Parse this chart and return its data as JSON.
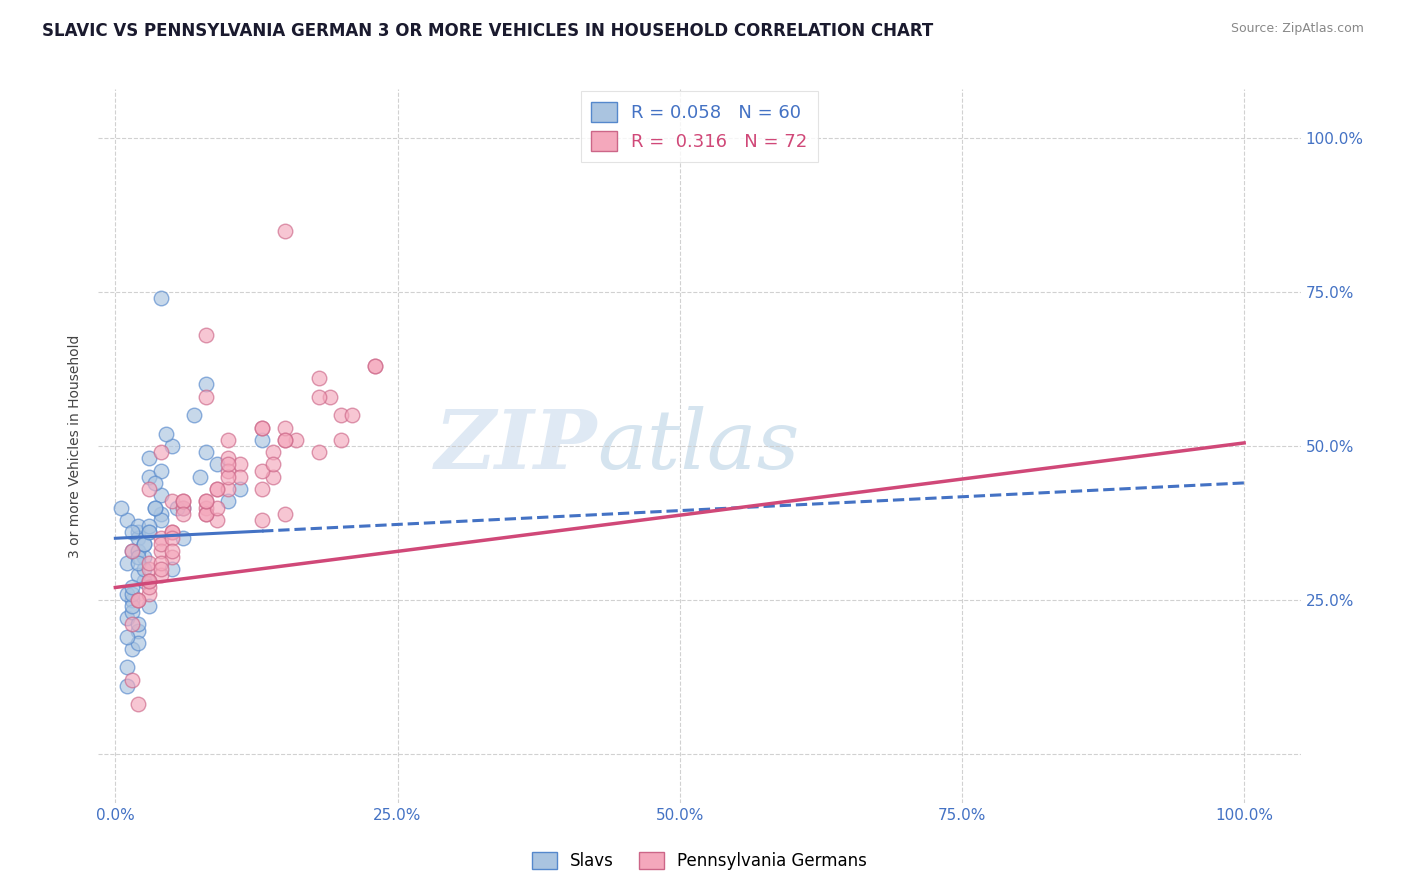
{
  "title": "SLAVIC VS PENNSYLVANIA GERMAN 3 OR MORE VEHICLES IN HOUSEHOLD CORRELATION CHART",
  "source": "Source: ZipAtlas.com",
  "ylabel": "3 or more Vehicles in Household",
  "slavs_R": 0.058,
  "slavs_N": 60,
  "pagerman_R": 0.316,
  "pagerman_N": 72,
  "legend_label1": "Slavs",
  "legend_label2": "Pennsylvania Germans",
  "watermark_text": "ZIP",
  "watermark_text2": "atlas",
  "slavs_color": "#aac4e0",
  "slavs_edge_color": "#5588cc",
  "pagerman_color": "#f4a8bc",
  "pagerman_edge_color": "#cc6688",
  "slavs_line_color": "#4472c4",
  "pagerman_line_color": "#d04878",
  "background_color": "#ffffff",
  "grid_color": "#cccccc",
  "tick_color": "#4472c4",
  "slavs_x": [
    2.0,
    4.0,
    8.0,
    13.0,
    3.0,
    1.0,
    2.0,
    6.0,
    0.5,
    1.5,
    3.0,
    5.0,
    9.0,
    11.0,
    4.0,
    4.5,
    5.5,
    7.0,
    1.0,
    2.0,
    3.0,
    4.0,
    8.0,
    10.0,
    1.5,
    2.5,
    3.5,
    5.0,
    1.0,
    2.0,
    6.0,
    3.0,
    1.5,
    4.0,
    2.0,
    1.0,
    2.5,
    1.5,
    3.5,
    7.5,
    1.0,
    1.5,
    2.0,
    2.5,
    3.0,
    2.0,
    1.5,
    4.0,
    1.0,
    2.0,
    2.5,
    1.5,
    1.0,
    3.0,
    2.0,
    3.5,
    1.5,
    2.5,
    3.0,
    2.0
  ],
  "slavs_y": [
    36,
    74,
    60,
    51,
    28,
    38,
    35,
    40,
    40,
    33,
    45,
    50,
    47,
    43,
    46,
    52,
    40,
    55,
    31,
    37,
    48,
    42,
    49,
    41,
    36,
    32,
    44,
    30,
    22,
    20,
    35,
    24,
    17,
    39,
    33,
    11,
    28,
    25,
    40,
    45,
    26,
    23,
    21,
    34,
    36,
    29,
    24,
    38,
    14,
    18,
    30,
    26,
    19,
    37,
    32,
    40,
    27,
    34,
    36,
    31
  ],
  "pagerman_x": [
    13.0,
    4.0,
    8.0,
    3.0,
    15.0,
    5.0,
    10.0,
    8.0,
    1.5,
    14.0,
    23.0,
    6.0,
    4.0,
    18.0,
    9.0,
    3.0,
    11.0,
    5.0,
    13.0,
    15.0,
    8.0,
    4.0,
    20.0,
    10.0,
    6.0,
    3.0,
    16.0,
    9.0,
    2.0,
    13.0,
    5.0,
    19.0,
    3.0,
    10.0,
    8.0,
    1.5,
    21.0,
    14.0,
    5.0,
    4.0,
    18.0,
    10.0,
    8.0,
    3.0,
    11.0,
    9.0,
    15.0,
    4.0,
    6.0,
    23.0,
    13.0,
    2.0,
    5.0,
    15.0,
    4.0,
    8.0,
    10.0,
    3.0,
    6.0,
    1.5,
    14.0,
    18.0,
    5.0,
    20.0,
    4.0,
    9.0,
    13.0,
    15.0,
    3.0,
    8.0,
    10.0,
    2.0
  ],
  "pagerman_y": [
    38,
    49,
    68,
    43,
    85,
    41,
    51,
    58,
    33,
    45,
    63,
    40,
    35,
    49,
    43,
    30,
    47,
    36,
    53,
    39,
    40,
    33,
    55,
    48,
    41,
    28,
    51,
    38,
    25,
    43,
    32,
    58,
    31,
    46,
    39,
    21,
    55,
    49,
    36,
    29,
    61,
    43,
    39,
    26,
    45,
    40,
    51,
    34,
    41,
    63,
    46,
    25,
    35,
    53,
    31,
    41,
    45,
    27,
    39,
    12,
    47,
    58,
    33,
    51,
    30,
    43,
    53,
    51,
    28,
    41,
    47,
    8
  ],
  "slavs_line_intercept": 35.0,
  "slavs_line_slope": 0.09,
  "pagerman_line_intercept": 27.0,
  "pagerman_line_slope": 0.235,
  "xlim": [
    -1.5,
    105
  ],
  "ylim": [
    -8,
    108
  ],
  "xticks": [
    0,
    25,
    50,
    75,
    100
  ],
  "yticks": [
    0,
    25,
    50,
    75,
    100
  ],
  "xtick_labels": [
    "0.0%",
    "25.0%",
    "50.0%",
    "75.0%",
    "100.0%"
  ],
  "ytick_labels_right": [
    "",
    "25.0%",
    "50.0%",
    "75.0%",
    "100.0%"
  ],
  "title_fontsize": 12,
  "tick_fontsize": 11,
  "scatter_size": 110,
  "scatter_alpha": 0.65,
  "scatter_linewidth": 1.0
}
